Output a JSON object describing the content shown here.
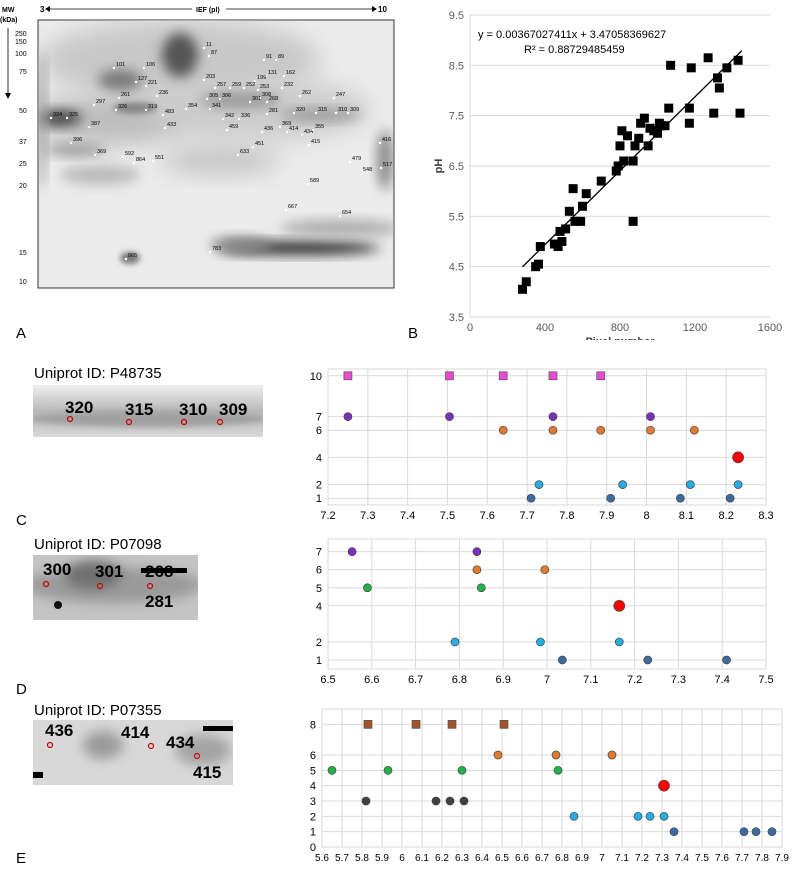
{
  "labels": {
    "A": "A",
    "B": "B",
    "C": "C",
    "D": "D",
    "E": "E"
  },
  "gel": {
    "mw_label": "MW",
    "mw_unit": "(kDa)",
    "ief_label": "IEF (pI)",
    "ief_left": "3",
    "ief_right": "10",
    "mw_ticks": [
      "250",
      "150",
      "100",
      "75",
      "50",
      "37",
      "25",
      "20",
      "15",
      "10"
    ],
    "spots": [
      "11",
      "87",
      "91",
      "89",
      "101",
      "106",
      "131",
      "162",
      "203",
      "257",
      "259",
      "252",
      "253",
      "199",
      "232",
      "127",
      "221",
      "261",
      "236",
      "326",
      "319",
      "262",
      "247",
      "297",
      "305",
      "306",
      "308",
      "301",
      "268",
      "320",
      "315",
      "310",
      "309",
      "324",
      "325",
      "387",
      "354",
      "341",
      "342",
      "336",
      "281",
      "369",
      "414",
      "434",
      "355",
      "396",
      "483",
      "459",
      "433",
      "436",
      "451",
      "415",
      "416",
      "369",
      "592",
      "864",
      "551",
      "633",
      "479",
      "548",
      "517",
      "589",
      "667",
      "654",
      "865",
      "783"
    ]
  },
  "crops": [
    {
      "title": "Uniprot ID: P48735",
      "spot_labels": [
        "320",
        "315",
        "310",
        "309"
      ]
    },
    {
      "title": "Uniprot ID: P07098",
      "spot_labels": [
        "300",
        "301",
        "268",
        "281"
      ]
    },
    {
      "title": "Uniprot ID: P07355",
      "spot_labels": [
        "436",
        "414",
        "434",
        "415"
      ]
    }
  ],
  "colors": {
    "square_black": "#000000",
    "magenta": "#e64bd2",
    "purple": "#7b2fbe",
    "orange": "#e07b31",
    "red": "#ff0000",
    "lightblue": "#25aee6",
    "steelblue": "#3d6aa0",
    "green": "#22b14c",
    "darkgray": "#404040",
    "brown": "#a0522d"
  },
  "chart_data": [
    {
      "type": "scatter",
      "equation": "y = 0.00367027411x + 3.47058369627",
      "r2_label": "R² = 0.88729485459",
      "xlabel": "Pixel number",
      "ylabel": "pH",
      "xlim": [
        0,
        1600
      ],
      "ylim": [
        3.5,
        9.5
      ],
      "xticks": [
        "0",
        "400",
        "800",
        "1200",
        "1600"
      ],
      "yticks": [
        "3.5",
        "4.5",
        "5.5",
        "6.5",
        "7.5",
        "8.5",
        "9.5"
      ],
      "trendline": {
        "slope": 0.00367027411,
        "intercept": 3.47058369627,
        "x_range": [
          280,
          1450
        ]
      },
      "points": [
        [
          280,
          4.05
        ],
        [
          300,
          4.2
        ],
        [
          350,
          4.5
        ],
        [
          365,
          4.55
        ],
        [
          375,
          4.9
        ],
        [
          450,
          4.95
        ],
        [
          470,
          4.9
        ],
        [
          480,
          5.2
        ],
        [
          490,
          5.0
        ],
        [
          510,
          5.25
        ],
        [
          530,
          5.6
        ],
        [
          550,
          6.05
        ],
        [
          560,
          5.4
        ],
        [
          590,
          5.4
        ],
        [
          600,
          5.7
        ],
        [
          620,
          5.95
        ],
        [
          700,
          6.2
        ],
        [
          780,
          6.4
        ],
        [
          790,
          6.5
        ],
        [
          800,
          6.9
        ],
        [
          810,
          7.2
        ],
        [
          820,
          6.6
        ],
        [
          840,
          7.1
        ],
        [
          870,
          5.4
        ],
        [
          870,
          6.6
        ],
        [
          880,
          6.9
        ],
        [
          900,
          7.05
        ],
        [
          910,
          7.35
        ],
        [
          930,
          7.45
        ],
        [
          950,
          6.9
        ],
        [
          960,
          7.25
        ],
        [
          980,
          7.2
        ],
        [
          1000,
          7.15
        ],
        [
          1010,
          7.35
        ],
        [
          1020,
          7.3
        ],
        [
          1040,
          7.3
        ],
        [
          1060,
          7.65
        ],
        [
          1070,
          8.5
        ],
        [
          1170,
          7.35
        ],
        [
          1170,
          7.65
        ],
        [
          1180,
          8.45
        ],
        [
          1270,
          8.65
        ],
        [
          1300,
          7.55
        ],
        [
          1320,
          8.25
        ],
        [
          1330,
          8.05
        ],
        [
          1370,
          8.45
        ],
        [
          1430,
          8.6
        ],
        [
          1440,
          7.55
        ]
      ]
    },
    {
      "type": "scatter",
      "xlim": [
        7.2,
        8.3
      ],
      "xticks": [
        "7.2",
        "7.3",
        "7.4",
        "7.5",
        "7.6",
        "7.7",
        "7.8",
        "7.9",
        "8",
        "8.1",
        "8.2",
        "8.3"
      ],
      "yticks": [
        1,
        2,
        4,
        6,
        7,
        10
      ],
      "ymax": 10.5,
      "series": [
        {
          "marker": "square",
          "color": "magenta",
          "y": 10,
          "x": [
            7.25,
            7.505,
            7.64,
            7.765,
            7.885
          ]
        },
        {
          "marker": "circle",
          "color": "purple",
          "y": 7,
          "x": [
            7.25,
            7.505,
            7.765,
            8.01
          ]
        },
        {
          "marker": "circle",
          "color": "orange",
          "y": 6,
          "x": [
            7.64,
            7.765,
            7.885,
            8.01,
            8.12
          ]
        },
        {
          "marker": "circle",
          "color": "red",
          "y": 4,
          "x": [
            8.23
          ]
        },
        {
          "marker": "circle",
          "color": "lightblue",
          "y": 2,
          "x": [
            7.73,
            7.94,
            8.11,
            8.23
          ]
        },
        {
          "marker": "circle",
          "color": "steelblue",
          "y": 1,
          "x": [
            7.71,
            7.91,
            8.085,
            8.21
          ]
        }
      ]
    },
    {
      "type": "scatter",
      "xlim": [
        6.5,
        7.5
      ],
      "xticks": [
        "6.5",
        "6.6",
        "6.7",
        "6.8",
        "6.9",
        "7",
        "7.1",
        "7.2",
        "7.3",
        "7.4",
        "7.5"
      ],
      "yticks": [
        1,
        2,
        4,
        5,
        6,
        7
      ],
      "ymax": 7.7,
      "series": [
        {
          "marker": "circle",
          "color": "purple",
          "y": 7,
          "x": [
            6.555,
            6.84
          ]
        },
        {
          "marker": "circle",
          "color": "orange",
          "y": 6,
          "x": [
            6.84,
            6.995
          ]
        },
        {
          "marker": "circle",
          "color": "green",
          "y": 5,
          "x": [
            6.59,
            6.85
          ]
        },
        {
          "marker": "circle",
          "color": "red",
          "y": 4,
          "x": [
            7.165
          ]
        },
        {
          "marker": "circle",
          "color": "lightblue",
          "y": 2,
          "x": [
            6.79,
            6.985,
            7.165
          ]
        },
        {
          "marker": "circle",
          "color": "steelblue",
          "y": 1,
          "x": [
            7.035,
            7.23,
            7.41
          ]
        }
      ]
    },
    {
      "type": "scatter",
      "xlim": [
        5.6,
        7.9
      ],
      "xticks": [
        "5.6",
        "5.7",
        "5.8",
        "5.9",
        "6",
        "6.1",
        "6.2",
        "6.3",
        "6.4",
        "6.5",
        "6.6",
        "6.7",
        "6.8",
        "6.9",
        "7",
        "7.1",
        "7.2",
        "7.3",
        "7.4",
        "7.5",
        "7.6",
        "7.7",
        "7.8",
        "7.9"
      ],
      "yticks": [
        0,
        1,
        2,
        3,
        4,
        5,
        6,
        8
      ],
      "ymax": 9,
      "series": [
        {
          "marker": "square",
          "color": "brown",
          "y": 8,
          "x": [
            5.83,
            6.07,
            6.25,
            6.51
          ]
        },
        {
          "marker": "circle",
          "color": "orange",
          "y": 6,
          "x": [
            6.48,
            6.77,
            7.05
          ]
        },
        {
          "marker": "circle",
          "color": "green",
          "y": 5,
          "x": [
            5.65,
            5.93,
            6.3,
            6.78
          ]
        },
        {
          "marker": "circle",
          "color": "red",
          "y": 4,
          "x": [
            7.31
          ]
        },
        {
          "marker": "circle",
          "color": "darkgray",
          "y": 3,
          "x": [
            5.82,
            6.17,
            6.24,
            6.31
          ]
        },
        {
          "marker": "circle",
          "color": "lightblue",
          "y": 2,
          "x": [
            6.86,
            7.18,
            7.24,
            7.31
          ]
        },
        {
          "marker": "circle",
          "color": "steelblue",
          "y": 1,
          "x": [
            7.36,
            7.71,
            7.77,
            7.85
          ]
        }
      ]
    }
  ]
}
